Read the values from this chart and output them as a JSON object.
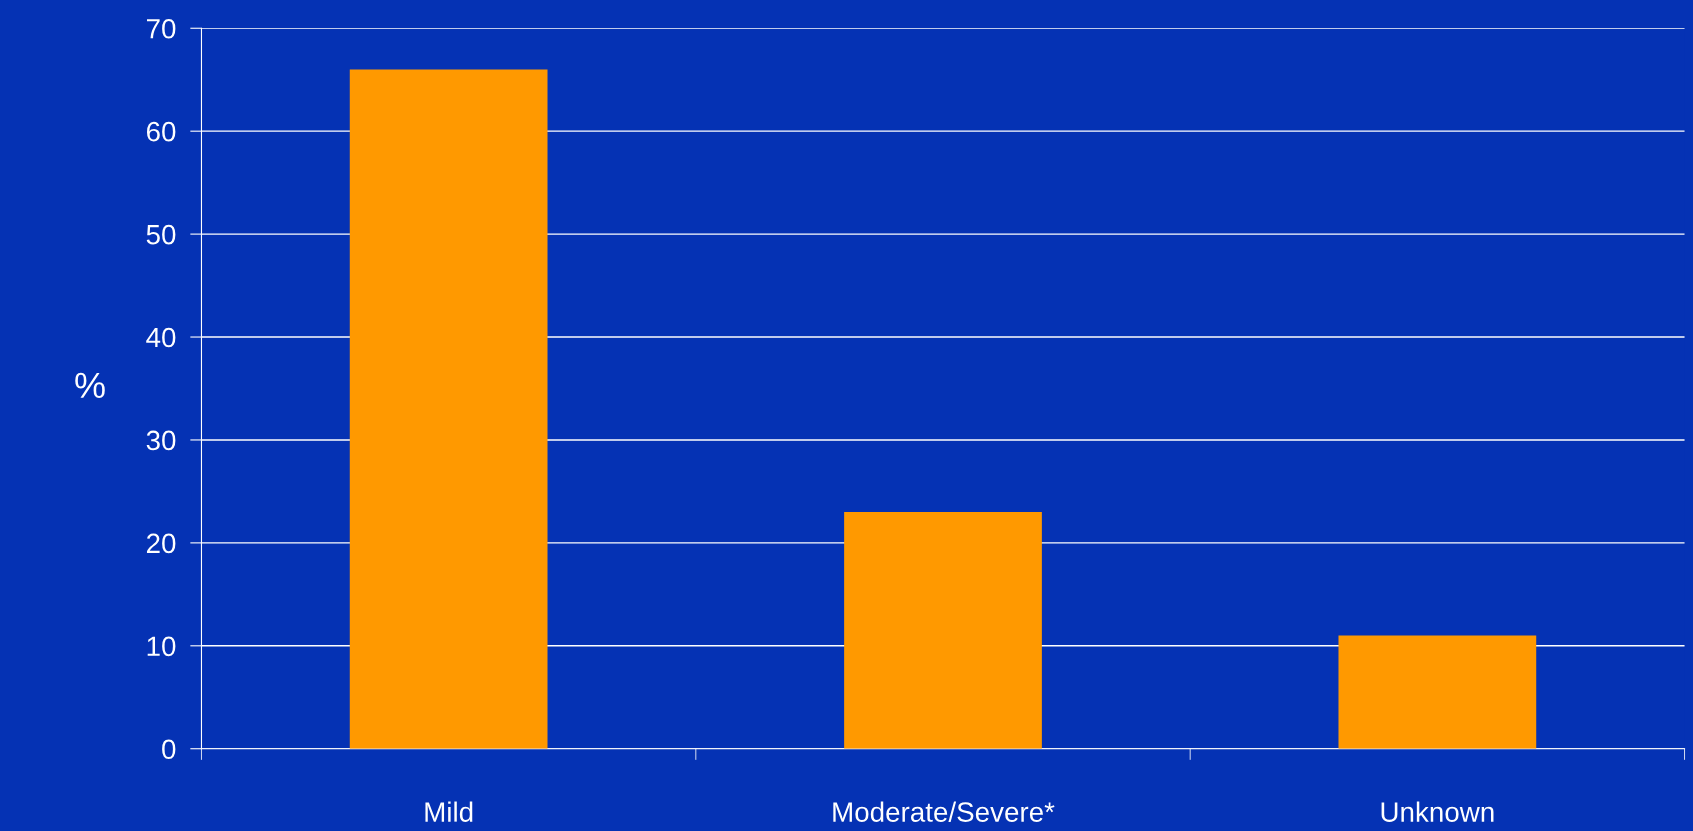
{
  "chart_data": {
    "type": "bar",
    "categories": [
      "Mild",
      "Moderate/Severe*",
      "Unknown"
    ],
    "values": [
      66,
      23,
      11
    ],
    "color": "#ff9900",
    "ylabel": "%",
    "ylim": [
      0,
      70
    ],
    "yticks": [
      0,
      10,
      20,
      30,
      40,
      50,
      60,
      70
    ],
    "grid": "y",
    "legend": false
  }
}
